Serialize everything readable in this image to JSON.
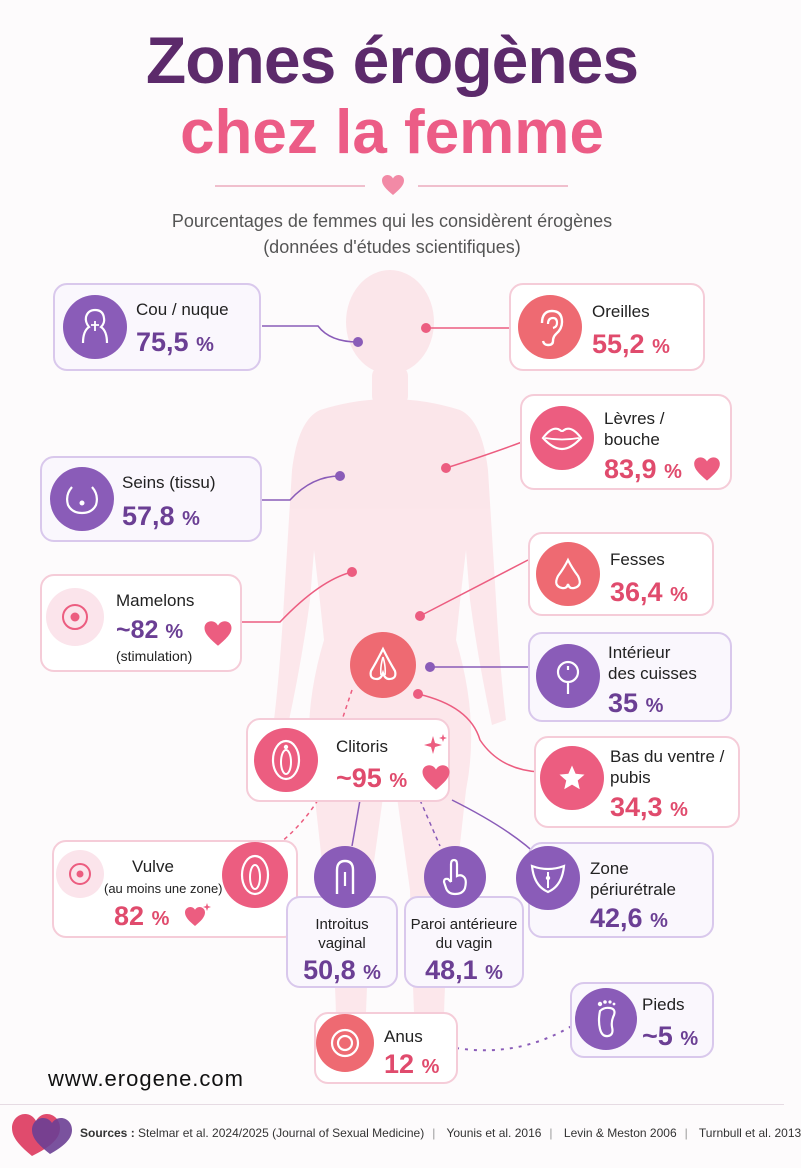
{
  "title": {
    "line1": "Zones érogènes",
    "line2": "chez la femme"
  },
  "subtitle": {
    "line1": "Pourcentages de femmes qui les considèrent érogènes",
    "line2": "(données d'études scientifiques)"
  },
  "zones": {
    "cou": {
      "label": "Cou / nuque",
      "value": "75,5",
      "unit": "%"
    },
    "oreilles": {
      "label": "Oreilles",
      "value": "55,2",
      "unit": "%"
    },
    "levres": {
      "label1": "Lèvres /",
      "label2": "bouche",
      "value": "83,9",
      "unit": "%"
    },
    "seins": {
      "label": "Seins (tissu)",
      "value": "57,8",
      "unit": "%"
    },
    "mamelons": {
      "label": "Mamelons",
      "value": "~82",
      "unit": "%",
      "note": "(stimulation)"
    },
    "fesses": {
      "label": "Fesses",
      "value": "36,4",
      "unit": "%"
    },
    "cuisses": {
      "label1": "Intérieur",
      "label2": "des cuisses",
      "value": "35",
      "unit": "%"
    },
    "clitoris": {
      "label": "Clitoris",
      "value": "~95",
      "unit": "%"
    },
    "ventre": {
      "label1": "Bas du ventre /",
      "label2": "pubis",
      "value": "34,3",
      "unit": "%"
    },
    "vulve": {
      "label": "Vulve",
      "note": "(au moins une zone)",
      "value": "82",
      "unit": "%"
    },
    "introitus": {
      "label1": "Introitus",
      "label2": "vaginal",
      "value": "50,8",
      "unit": "%"
    },
    "paroi": {
      "label1": "Paroi antérieure",
      "label2": "du vagin",
      "value": "48,1",
      "unit": "%"
    },
    "periuretrale": {
      "label1": "Zone",
      "label2": "périurétrale",
      "value": "42,6",
      "unit": "%"
    },
    "pieds": {
      "label": "Pieds",
      "value": "~5",
      "unit": "%"
    },
    "anus": {
      "label": "Anus",
      "value": "12",
      "unit": "%"
    }
  },
  "website": "www.erogene.com",
  "sources": {
    "prefix": "Sources :",
    "items": [
      "Stelmar et al. 2024/2025 (Journal of Sexual Medicine)",
      "Younis et al. 2016",
      "Levin & Meston 2006",
      "Turnbull et al. 2013"
    ]
  },
  "colors": {
    "purple": "#6b3f94",
    "pink": "#e04b6d",
    "title": "#5c2a6b",
    "accent": "#ec5c86"
  }
}
